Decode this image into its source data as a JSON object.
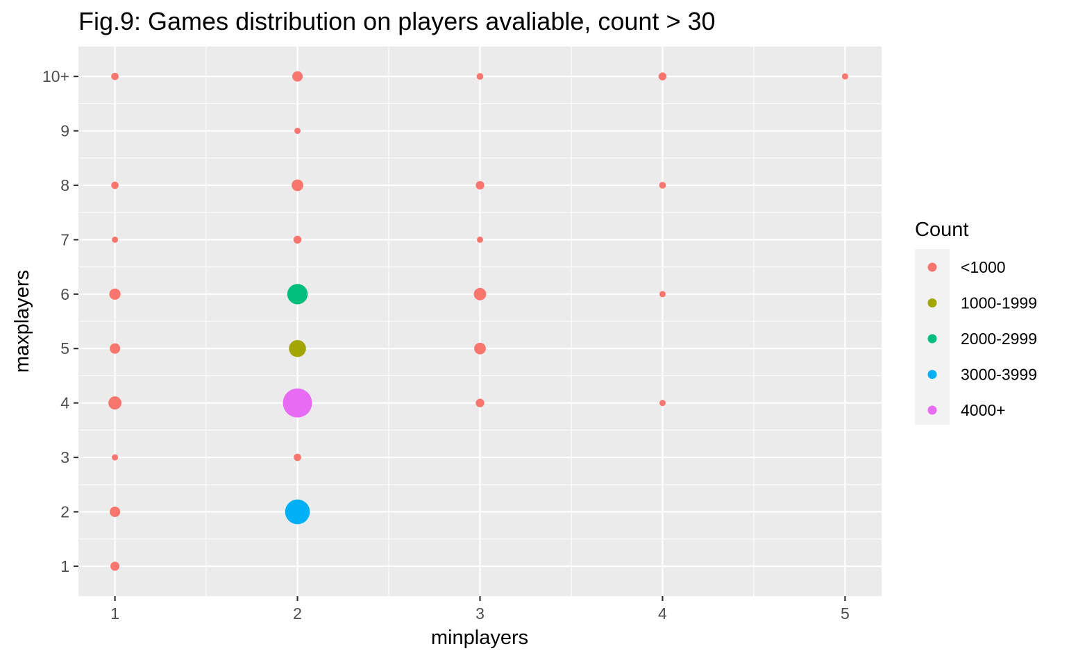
{
  "chart_data": {
    "type": "scatter",
    "title": "Fig.9: Games distribution on players avaliable, count > 30",
    "xlabel": "minplayers",
    "ylabel": "maxplayers",
    "x_ticks": [
      "1",
      "2",
      "3",
      "4",
      "5"
    ],
    "y_categories": [
      "1",
      "2",
      "3",
      "4",
      "5",
      "6",
      "7",
      "8",
      "9",
      "10+"
    ],
    "grid": true,
    "legend": {
      "title": "Count",
      "position": "right",
      "entries": [
        {
          "label": "<1000",
          "color": "#F8766D"
        },
        {
          "label": "1000-1999",
          "color": "#A3A500"
        },
        {
          "label": "2000-2999",
          "color": "#00BF7D"
        },
        {
          "label": "3000-3999",
          "color": "#00B0F6"
        },
        {
          "label": "4000+",
          "color": "#E76BF3"
        }
      ]
    },
    "points": [
      {
        "x": 1,
        "y": "10+",
        "count": 300,
        "group": "<1000"
      },
      {
        "x": 1,
        "y": "8",
        "count": 300,
        "group": "<1000"
      },
      {
        "x": 1,
        "y": "7",
        "count": 100,
        "group": "<1000"
      },
      {
        "x": 1,
        "y": "6",
        "count": 700,
        "group": "<1000"
      },
      {
        "x": 1,
        "y": "5",
        "count": 600,
        "group": "<1000"
      },
      {
        "x": 1,
        "y": "4",
        "count": 950,
        "group": "<1000"
      },
      {
        "x": 1,
        "y": "3",
        "count": 150,
        "group": "<1000"
      },
      {
        "x": 1,
        "y": "2",
        "count": 600,
        "group": "<1000"
      },
      {
        "x": 1,
        "y": "1",
        "count": 450,
        "group": "<1000"
      },
      {
        "x": 2,
        "y": "10+",
        "count": 600,
        "group": "<1000"
      },
      {
        "x": 2,
        "y": "9",
        "count": 50,
        "group": "<1000"
      },
      {
        "x": 2,
        "y": "8",
        "count": 750,
        "group": "<1000"
      },
      {
        "x": 2,
        "y": "7",
        "count": 350,
        "group": "<1000"
      },
      {
        "x": 2,
        "y": "6",
        "count": 2300,
        "group": "2000-2999"
      },
      {
        "x": 2,
        "y": "5",
        "count": 1600,
        "group": "1000-1999"
      },
      {
        "x": 2,
        "y": "4",
        "count": 4700,
        "group": "4000+"
      },
      {
        "x": 2,
        "y": "3",
        "count": 300,
        "group": "<1000"
      },
      {
        "x": 2,
        "y": "2",
        "count": 3400,
        "group": "3000-3999"
      },
      {
        "x": 3,
        "y": "10+",
        "count": 250,
        "group": "<1000"
      },
      {
        "x": 3,
        "y": "8",
        "count": 400,
        "group": "<1000"
      },
      {
        "x": 3,
        "y": "7",
        "count": 200,
        "group": "<1000"
      },
      {
        "x": 3,
        "y": "6",
        "count": 850,
        "group": "<1000"
      },
      {
        "x": 3,
        "y": "5",
        "count": 750,
        "group": "<1000"
      },
      {
        "x": 3,
        "y": "4",
        "count": 400,
        "group": "<1000"
      },
      {
        "x": 4,
        "y": "10+",
        "count": 350,
        "group": "<1000"
      },
      {
        "x": 4,
        "y": "8",
        "count": 250,
        "group": "<1000"
      },
      {
        "x": 4,
        "y": "6",
        "count": 200,
        "group": "<1000"
      },
      {
        "x": 4,
        "y": "4",
        "count": 80,
        "group": "<1000"
      },
      {
        "x": 5,
        "y": "10+",
        "count": 150,
        "group": "<1000"
      }
    ]
  }
}
